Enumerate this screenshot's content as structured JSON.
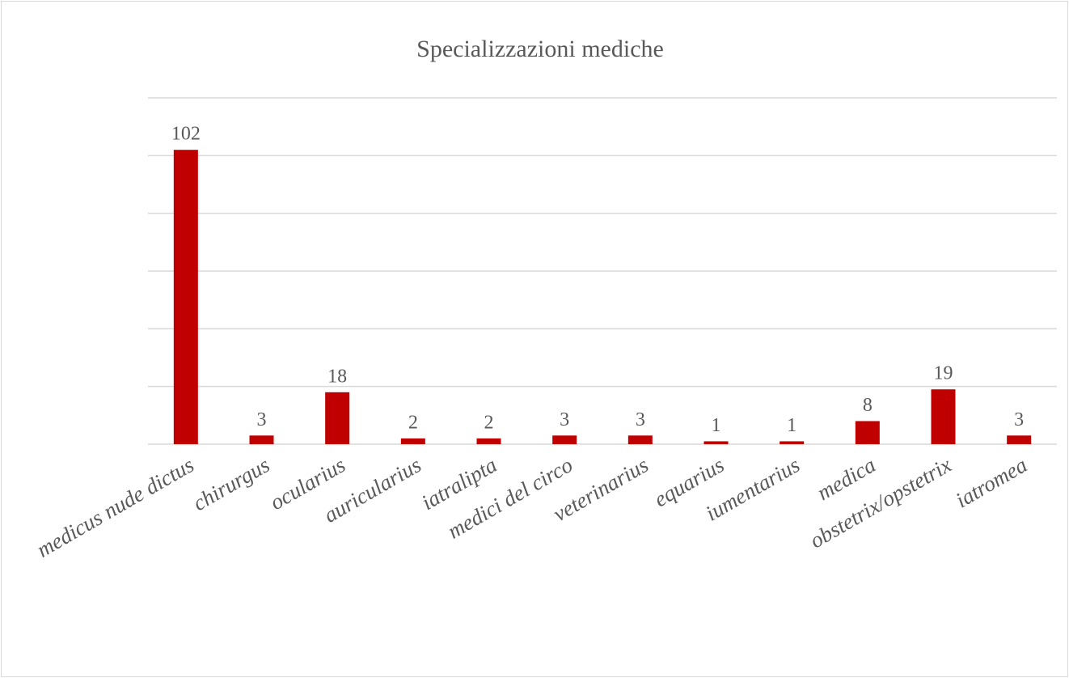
{
  "chart_data": {
    "type": "bar",
    "title": "Specializzazioni mediche",
    "categories": [
      "medicus nude dictus",
      "chirurgus",
      "ocularius",
      "auricularius",
      "iatralipta",
      "medici del circo",
      "veterinarius",
      "equarius",
      "iumentarius",
      "medica",
      "obstetrix/opstetrix",
      "iatromea"
    ],
    "values": [
      102,
      3,
      18,
      2,
      2,
      3,
      3,
      1,
      1,
      8,
      19,
      3
    ],
    "color": "#c00000",
    "ylim": [
      0,
      120
    ],
    "yticks": [
      0,
      20,
      40,
      60,
      80,
      100,
      120
    ],
    "grid": true
  }
}
